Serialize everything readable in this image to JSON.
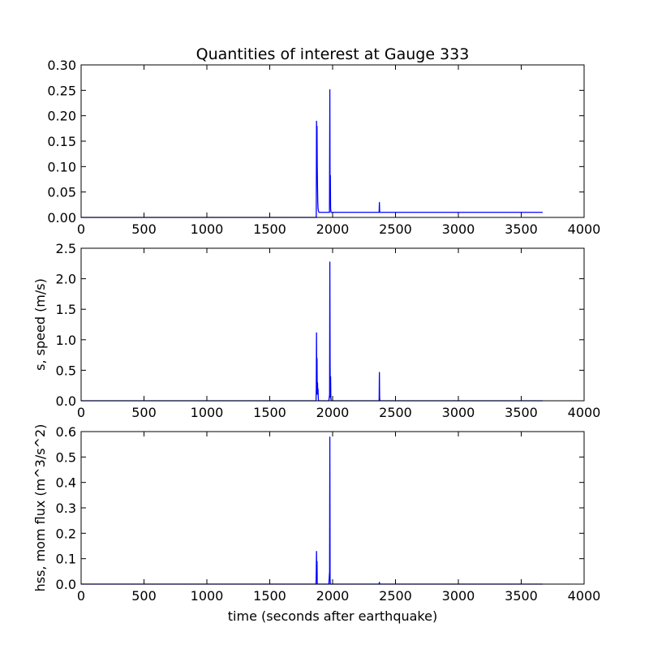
{
  "figure_title": "Quantities of interest at Gauge 333",
  "xlabel": "time (seconds after earthquake)",
  "line_color": "#0000ff",
  "chart_data": [
    {
      "type": "line",
      "title": "Quantities of interest at Gauge 333",
      "xlabel": "",
      "ylabel": "",
      "xlim": [
        0,
        4000
      ],
      "ylim": [
        0,
        0.3
      ],
      "xticks": [
        0,
        500,
        1000,
        1500,
        2000,
        2500,
        3000,
        3500,
        4000
      ],
      "xtick_labels": [
        "0",
        "500",
        "1000",
        "1500",
        "2000",
        "2500",
        "3000",
        "3500",
        "4000"
      ],
      "yticks": [
        0,
        0.05,
        0.1,
        0.15,
        0.2,
        0.25,
        0.3
      ],
      "ytick_labels": [
        "0.00",
        "0.05",
        "0.10",
        "0.15",
        "0.20",
        "0.25",
        "0.30"
      ],
      "series": [
        {
          "color": "#0000ff",
          "x": [
            0,
            1870,
            1872,
            1874,
            1876,
            1878,
            1880,
            1882,
            1884,
            1888,
            1892,
            1896,
            1900,
            1960,
            1975,
            1978,
            1980,
            1982,
            1984,
            1986,
            1988,
            1992,
            2000,
            2370,
            2372,
            2374,
            2376,
            3670
          ],
          "y": [
            0,
            0.0,
            0.19,
            0.12,
            0.18,
            0.1,
            0.06,
            0.03,
            0.018,
            0.012,
            0.01,
            0.01,
            0.01,
            0.01,
            0.01,
            0.252,
            0.03,
            0.083,
            0.018,
            0.012,
            0.01,
            0.01,
            0.01,
            0.01,
            0.03,
            0.012,
            0.01,
            0.01
          ]
        }
      ]
    },
    {
      "type": "line",
      "xlabel": "",
      "ylabel": "s, speed (m/s)",
      "xlim": [
        0,
        4000
      ],
      "ylim": [
        0,
        2.5
      ],
      "xticks": [
        0,
        500,
        1000,
        1500,
        2000,
        2500,
        3000,
        3500,
        4000
      ],
      "xtick_labels": [
        "0",
        "500",
        "1000",
        "1500",
        "2000",
        "2500",
        "3000",
        "3500",
        "4000"
      ],
      "yticks": [
        0,
        0.5,
        1.0,
        1.5,
        2.0,
        2.5
      ],
      "ytick_labels": [
        "0.0",
        "0.5",
        "1.0",
        "1.5",
        "2.0",
        "2.5"
      ],
      "series": [
        {
          "color": "#0000ff",
          "x": [
            0,
            1868,
            1870,
            1872,
            1874,
            1876,
            1878,
            1880,
            1882,
            1884,
            1886,
            1888,
            1890,
            1900,
            1970,
            1976,
            1978,
            1980,
            1982,
            1984,
            1986,
            1988,
            1992,
            2370,
            2372,
            2374,
            2376,
            3670
          ],
          "y": [
            0,
            0,
            0.2,
            1.12,
            0.3,
            0.7,
            0.1,
            0.3,
            0.15,
            0.2,
            0.05,
            0.0,
            0.0,
            0.0,
            0.0,
            0.1,
            2.28,
            0.6,
            0.05,
            0.4,
            0.05,
            0.0,
            0.0,
            0.0,
            0.47,
            0.05,
            0.0,
            0.0
          ]
        }
      ]
    },
    {
      "type": "line",
      "xlabel": "time (seconds after earthquake)",
      "ylabel": "hss, mom flux (m^3/s^2)",
      "xlim": [
        0,
        4000
      ],
      "ylim": [
        0,
        0.6
      ],
      "xticks": [
        0,
        500,
        1000,
        1500,
        2000,
        2500,
        3000,
        3500,
        4000
      ],
      "xtick_labels": [
        "0",
        "500",
        "1000",
        "1500",
        "2000",
        "2500",
        "3000",
        "3500",
        "4000"
      ],
      "yticks": [
        0,
        0.1,
        0.2,
        0.3,
        0.4,
        0.5,
        0.6
      ],
      "ytick_labels": [
        "0.0",
        "0.1",
        "0.2",
        "0.3",
        "0.4",
        "0.5",
        "0.6"
      ],
      "series": [
        {
          "color": "#0000ff",
          "x": [
            0,
            1868,
            1870,
            1872,
            1874,
            1876,
            1878,
            1880,
            1970,
            1976,
            1978,
            1980,
            1982,
            1984,
            2370,
            2372,
            2374,
            3670
          ],
          "y": [
            0,
            0,
            0.05,
            0.13,
            0.02,
            0.09,
            0.0,
            0.0,
            0.0,
            0.05,
            0.58,
            0.02,
            0.0,
            0.0,
            0.0,
            0.008,
            0.0,
            0.0
          ]
        }
      ]
    }
  ]
}
